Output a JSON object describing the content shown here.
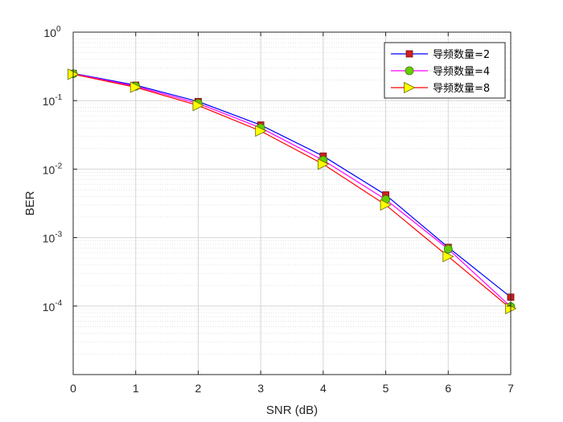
{
  "chart_data": {
    "type": "line",
    "xlabel": "SNR (dB)",
    "ylabel": "BER",
    "x": [
      0,
      1,
      2,
      3,
      4,
      5,
      6,
      7
    ],
    "xlim": [
      0,
      7
    ],
    "ylim": [
      1e-05,
      1
    ],
    "yscale": "log",
    "x_ticks": [
      "0",
      "1",
      "2",
      "3",
      "4",
      "5",
      "6",
      "7"
    ],
    "y_ticks": [
      {
        "base": "10",
        "exp": "0",
        "value": 1
      },
      {
        "base": "10",
        "exp": "-1",
        "value": 0.1
      },
      {
        "base": "10",
        "exp": "-2",
        "value": 0.01
      },
      {
        "base": "10",
        "exp": "-3",
        "value": 0.001
      },
      {
        "base": "10",
        "exp": "-4",
        "value": 0.0001
      }
    ],
    "grid": true,
    "minor_grid": true,
    "legend_position": "top-right",
    "series": [
      {
        "name": "导频数量=2",
        "color": "#0000ff",
        "marker": "square",
        "marker_fill": "#cc1f1f",
        "values": [
          0.25,
          0.168,
          0.097,
          0.044,
          0.0155,
          0.0042,
          0.00072,
          0.000135
        ]
      },
      {
        "name": "导频数量=4",
        "color": "#ff00ff",
        "marker": "circle",
        "marker_fill": "#66cc00",
        "values": [
          0.247,
          0.162,
          0.091,
          0.04,
          0.0135,
          0.0036,
          0.00068,
          9.8e-05
        ]
      },
      {
        "name": "导频数量=8",
        "color": "#ff0000",
        "marker": "triangle-right",
        "marker_fill": "#ffff00",
        "values": [
          0.243,
          0.157,
          0.085,
          0.036,
          0.0118,
          0.003,
          0.00053,
          9.2e-05
        ]
      }
    ]
  }
}
